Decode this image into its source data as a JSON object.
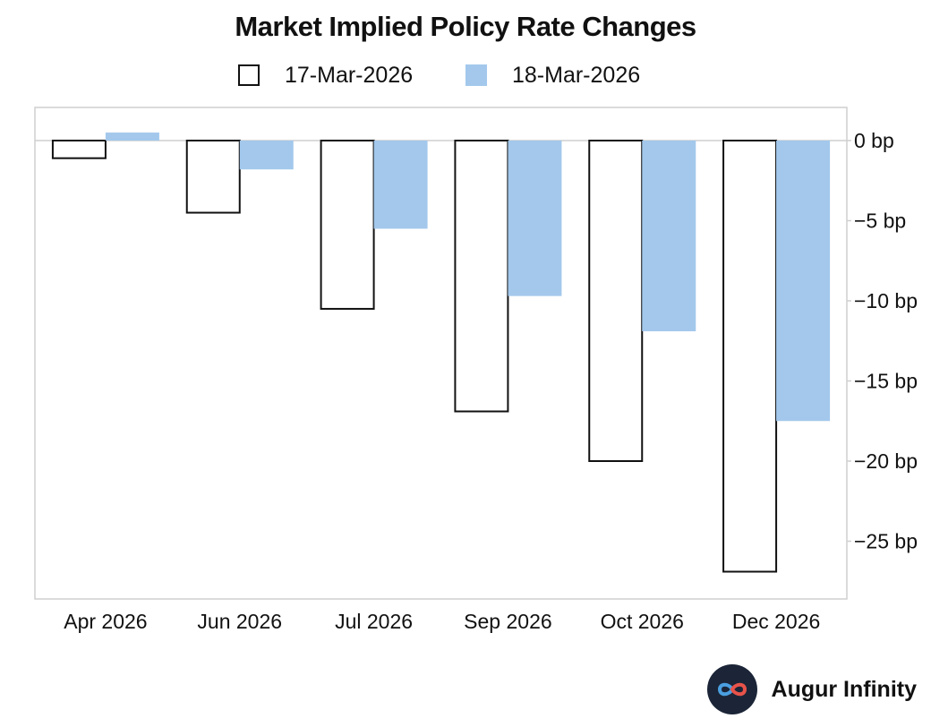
{
  "chart_data": {
    "type": "bar",
    "title": "Market Implied Policy Rate Changes",
    "categories": [
      "Apr 2026",
      "Jun 2026",
      "Jul 2026",
      "Sep 2026",
      "Oct 2026",
      "Dec 2026"
    ],
    "series": [
      {
        "name": "17-Mar-2026",
        "style": "outline",
        "color": "#111111",
        "values": [
          -1.1,
          -4.5,
          -10.5,
          -16.9,
          -20.0,
          -26.9
        ]
      },
      {
        "name": "18-Mar-2026",
        "style": "filled",
        "color": "#a3c8ec",
        "values": [
          0.5,
          -1.8,
          -5.5,
          -9.7,
          -11.9,
          -17.5
        ]
      }
    ],
    "y_ticks": [
      0,
      -5,
      -10,
      -15,
      -20,
      -25
    ],
    "y_tick_labels": [
      "0 bp",
      "−5 bp",
      "−10 bp",
      "−15 bp",
      "−20 bp",
      "−25 bp"
    ],
    "ylim": [
      -28.5,
      2
    ],
    "ylabel": "",
    "xlabel": "",
    "legend_position": "top-center",
    "axis_position": "right"
  },
  "brand": {
    "name": "Augur Infinity",
    "logo": "infinity-logo-icon"
  }
}
